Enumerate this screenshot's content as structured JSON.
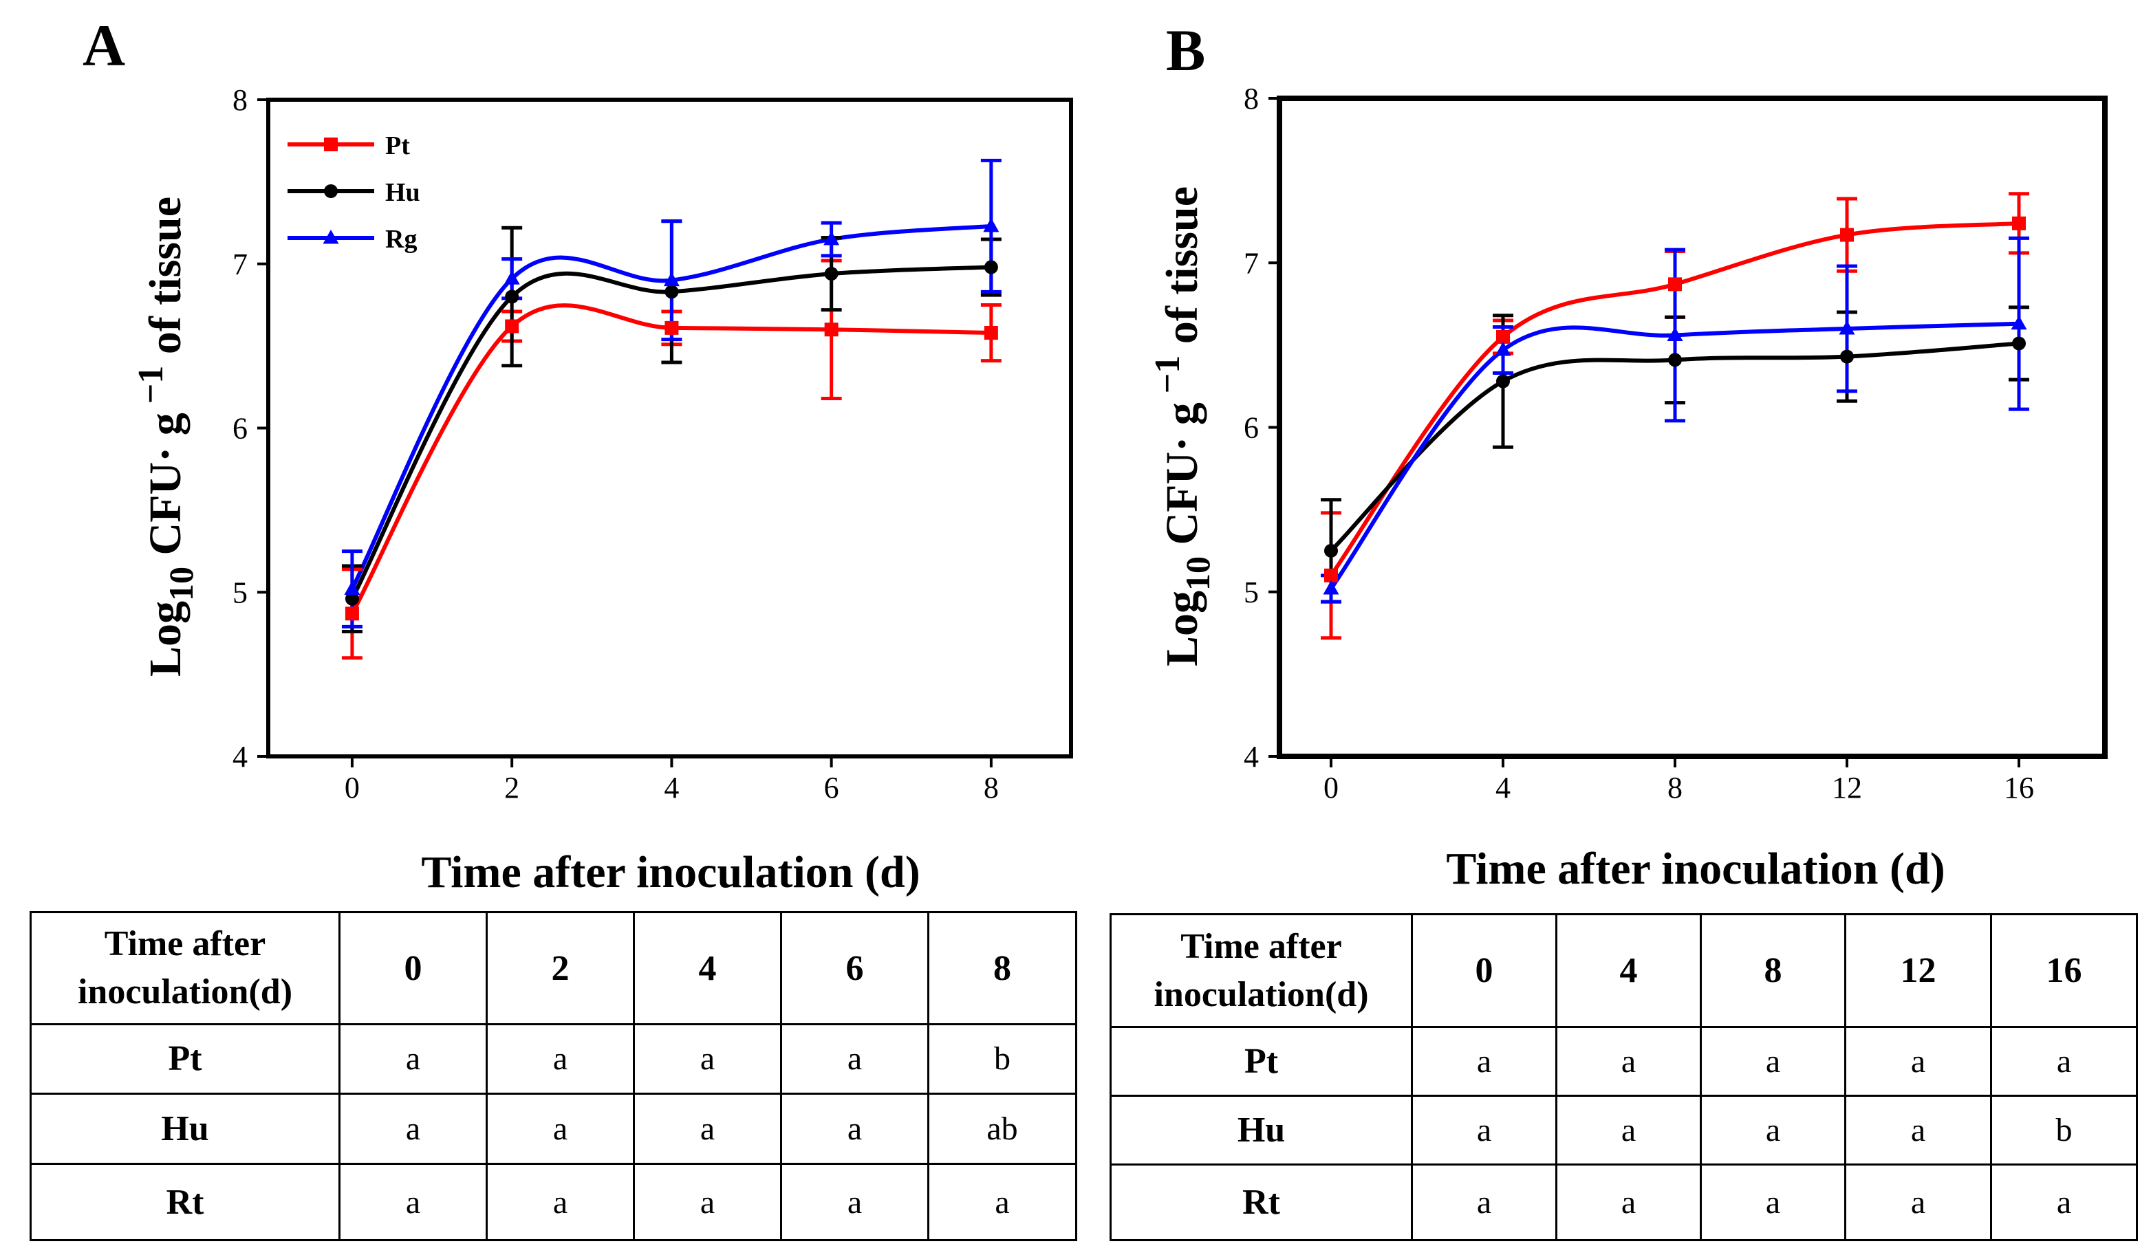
{
  "chart_data": [
    {
      "panel": "A",
      "type": "line",
      "xlabel": "Time after inoculation (d)",
      "ylabel_main": "Log",
      "ylabel_sub": "10",
      "ylabel_rest": " CFU",
      "ylabel_dot": "·",
      "ylabel_g": " g",
      "ylabel_sup": " −1",
      "ylabel_tail": " of tissue",
      "xlim": [
        -1.05,
        9.0
      ],
      "ylim": [
        4,
        8
      ],
      "x_ticks": [
        0,
        2,
        4,
        6,
        8
      ],
      "y_ticks": [
        4,
        5,
        6,
        7,
        8
      ],
      "x_tick_labels": [
        "0",
        "2",
        "4",
        "6",
        "8"
      ],
      "y_tick_labels": [
        "4",
        "5",
        "6",
        "7",
        "8"
      ],
      "legend_position": "top-left",
      "grid": false,
      "series": [
        {
          "name": "Pt",
          "color": "#ff0000",
          "marker": "square",
          "x": [
            0,
            2,
            4,
            6,
            8
          ],
          "y": [
            4.87,
            6.62,
            6.61,
            6.6,
            6.58
          ],
          "err": [
            0.27,
            0.09,
            0.1,
            0.42,
            0.17
          ]
        },
        {
          "name": "Hu",
          "color": "#000000",
          "marker": "circle",
          "x": [
            0,
            2,
            4,
            6,
            8
          ],
          "y": [
            4.96,
            6.8,
            6.83,
            6.94,
            6.98
          ],
          "err": [
            0.2,
            0.42,
            0.43,
            0.22,
            0.17
          ]
        },
        {
          "name": "Rg",
          "color": "#0000ff",
          "marker": "triangle",
          "x": [
            0,
            2,
            4,
            6,
            8
          ],
          "y": [
            5.02,
            6.91,
            6.9,
            7.15,
            7.23
          ],
          "err": [
            0.23,
            0.12,
            0.36,
            0.1,
            0.4
          ]
        }
      ]
    },
    {
      "panel": "B",
      "type": "line",
      "xlabel": "Time after inoculation (d)",
      "ylabel_main": "Log",
      "ylabel_sub": "10",
      "ylabel_rest": " CFU",
      "ylabel_dot": "·",
      "ylabel_g": " g",
      "ylabel_sup": " −1",
      "ylabel_tail": " of tissue",
      "xlim": [
        -1.2,
        18.0
      ],
      "ylim": [
        4,
        8
      ],
      "x_ticks": [
        0,
        4,
        8,
        12,
        16
      ],
      "y_ticks": [
        4,
        5,
        6,
        7,
        8
      ],
      "x_tick_labels": [
        "0",
        "4",
        "8",
        "12",
        "16"
      ],
      "y_tick_labels": [
        "4",
        "5",
        "6",
        "7",
        "8"
      ],
      "grid": false,
      "series": [
        {
          "color": "#ff0000",
          "marker": "square",
          "x": [
            0,
            4,
            8,
            12,
            16
          ],
          "y": [
            5.1,
            6.55,
            6.87,
            7.17,
            7.24
          ],
          "err": [
            0.38,
            0.1,
            0.2,
            0.22,
            0.18
          ]
        },
        {
          "color": "#000000",
          "marker": "circle",
          "x": [
            0,
            4,
            8,
            12,
            16
          ],
          "y": [
            5.25,
            6.28,
            6.41,
            6.43,
            6.51
          ],
          "err": [
            0.31,
            0.4,
            0.26,
            0.27,
            0.22
          ]
        },
        {
          "color": "#0000ff",
          "marker": "triangle",
          "x": [
            0,
            4,
            8,
            12,
            16
          ],
          "y": [
            5.02,
            6.47,
            6.56,
            6.6,
            6.63
          ],
          "err": [
            0.08,
            0.14,
            0.52,
            0.38,
            0.52
          ]
        }
      ]
    }
  ],
  "tables": [
    {
      "corner_line1": "Time after",
      "corner_line2": "inoculation(d)",
      "columns": [
        "0",
        "2",
        "4",
        "6",
        "8"
      ],
      "rows": [
        {
          "label": "Pt",
          "cells": [
            "a",
            "a",
            "a",
            "a",
            "b"
          ]
        },
        {
          "label": "Hu",
          "cells": [
            "a",
            "a",
            "a",
            "a",
            "ab"
          ]
        },
        {
          "label": "Rt",
          "cells": [
            "a",
            "a",
            "a",
            "a",
            "a"
          ]
        }
      ]
    },
    {
      "corner_line1": "Time after",
      "corner_line2": "inoculation(d)",
      "columns": [
        "0",
        "4",
        "8",
        "12",
        "16"
      ],
      "rows": [
        {
          "label": "Pt",
          "cells": [
            "a",
            "a",
            "a",
            "a",
            "a"
          ]
        },
        {
          "label": "Hu",
          "cells": [
            "a",
            "a",
            "a",
            "a",
            "b"
          ]
        },
        {
          "label": "Rt",
          "cells": [
            "a",
            "a",
            "a",
            "a",
            "a"
          ]
        }
      ]
    }
  ]
}
